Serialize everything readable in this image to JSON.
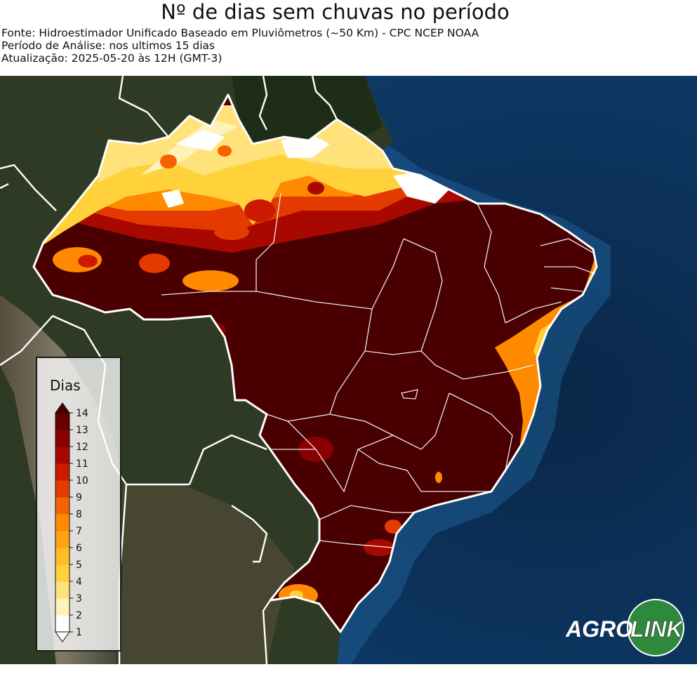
{
  "header": {
    "title": "Nº de dias sem chuvas no período",
    "source": "Fonte: Hidroestimador Unificado Baseado em Pluviômetros (~50 Km) - CPC NCEP NOAA",
    "period": "Período de Análise: nos ultimos 15 dias",
    "updated": "Atualização: 2025-05-20 às 12H (GMT-3)"
  },
  "legend": {
    "title": "Dias",
    "ticks": [
      "1",
      "2",
      "3",
      "4",
      "5",
      "6",
      "7",
      "8",
      "9",
      "10",
      "11",
      "12",
      "13",
      "14"
    ],
    "colors": [
      "#ffffff",
      "#fff2b8",
      "#ffe27a",
      "#ffd23c",
      "#ffbe28",
      "#ffa314",
      "#ff8a00",
      "#f56200",
      "#e43a00",
      "#cc1a00",
      "#a80800",
      "#880000",
      "#660000",
      "#4a0000"
    ]
  },
  "logo": {
    "text_left": "AGRO",
    "text_right": "LINK"
  },
  "colors": {
    "ocean": "#0b2f55",
    "land": "#2a3520",
    "border": "#ffffff"
  }
}
